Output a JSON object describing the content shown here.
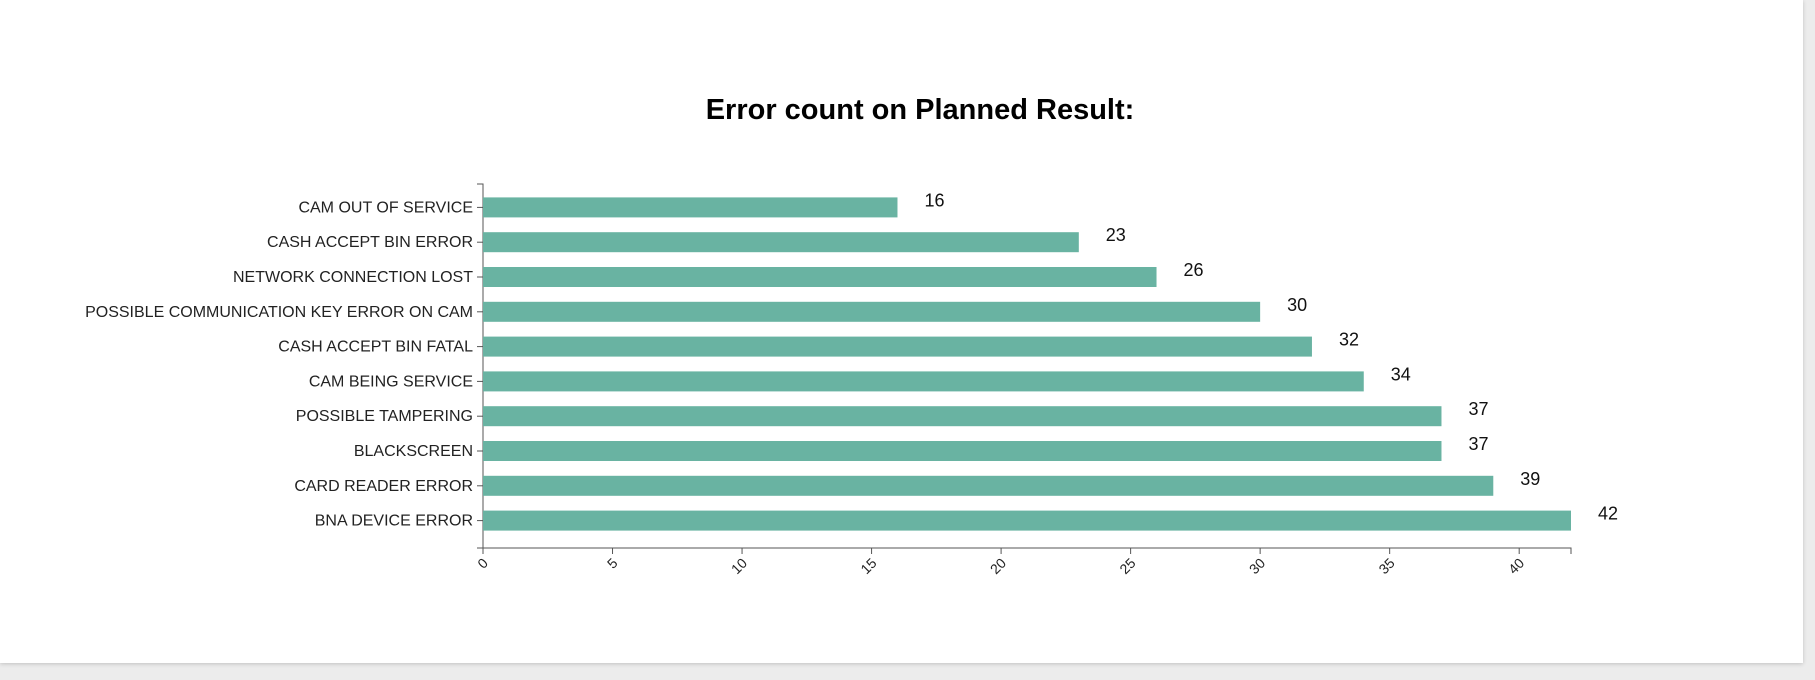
{
  "chart_data": {
    "type": "bar",
    "orientation": "horizontal",
    "title": "Error count on Planned Result:",
    "xlabel": "",
    "ylabel": "",
    "xlim": [
      0,
      42
    ],
    "x_ticks": [
      0,
      5,
      10,
      15,
      20,
      25,
      30,
      35,
      40
    ],
    "categories": [
      "CAM OUT OF SERVICE",
      "CASH ACCEPT BIN ERROR",
      "NETWORK CONNECTION LOST",
      "POSSIBLE COMMUNICATION KEY ERROR ON CAM",
      "CASH ACCEPT BIN FATAL",
      "CAM BEING SERVICE",
      "POSSIBLE TAMPERING",
      "BLACKSCREEN",
      "CARD READER ERROR",
      "BNA DEVICE ERROR"
    ],
    "values": [
      16,
      23,
      26,
      30,
      32,
      34,
      37,
      37,
      39,
      42
    ],
    "bar_color": "#69b3a2",
    "grid": false,
    "data_labels": true
  }
}
